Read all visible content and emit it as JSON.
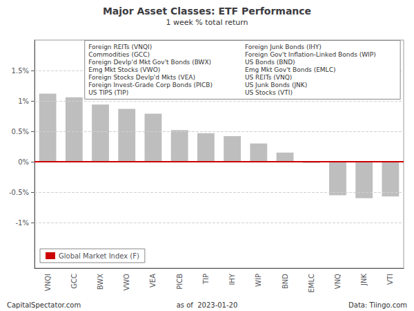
{
  "chart_data": {
    "type": "bar",
    "title": "Major Asset Classes: ETF Performance",
    "subtitle": "1 week % total return",
    "categories": [
      "VNQI",
      "GCC",
      "BWX",
      "VWO",
      "VEA",
      "PICB",
      "TIP",
      "IHY",
      "WIP",
      "BND",
      "EMLC",
      "VNQ",
      "JNK",
      "VTI"
    ],
    "values": [
      1.12,
      1.06,
      0.94,
      0.87,
      0.79,
      0.52,
      0.47,
      0.42,
      0.3,
      0.15,
      -0.02,
      -0.55,
      -0.6,
      -0.57
    ],
    "color": "#bebebe",
    "ylim": [
      -1.75,
      2.0
    ],
    "yticks": [
      {
        "value": -1.0,
        "label": "-1%"
      },
      {
        "value": -0.5,
        "label": "-0.5%"
      },
      {
        "value": 0.0,
        "label": "0%"
      },
      {
        "value": 0.5,
        "label": "0.5%"
      },
      {
        "value": 1.0,
        "label": "1%"
      },
      {
        "value": 1.5,
        "label": "1.5%"
      }
    ],
    "grid": true,
    "legend": "lower left",
    "hline": {
      "value": 0,
      "name": "Global Market Index (F)",
      "color": "#cc0000"
    },
    "annotation_columns": [
      [
        "Foreign REITs (VNQI)",
        "Commodities (GCC)",
        "Foreign Devlp'd Mkt Gov't Bonds (BWX)",
        "Emg Mkt Stocks (VWO)",
        "Foreign Stocks Devlp'd Mkts (VEA)",
        "Foreign Invest-Grade Corp Bonds (PICB)",
        "US TIPS (TIP)"
      ],
      [
        "Foreign Junk Bonds (IHY)",
        "Foreign Gov't Inflation-Linked Bonds (WIP)",
        "US Bonds (BND)",
        "Emg Mkt Gov't Bonds (EMLC)",
        "US REITs (VNQ)",
        "US Junk Bonds (JNK)",
        "US Stocks (VTI)"
      ]
    ],
    "footer": [
      "CapitalSpectator.com",
      "as of  2023-01-20",
      "Data: Tiingo.com"
    ]
  }
}
